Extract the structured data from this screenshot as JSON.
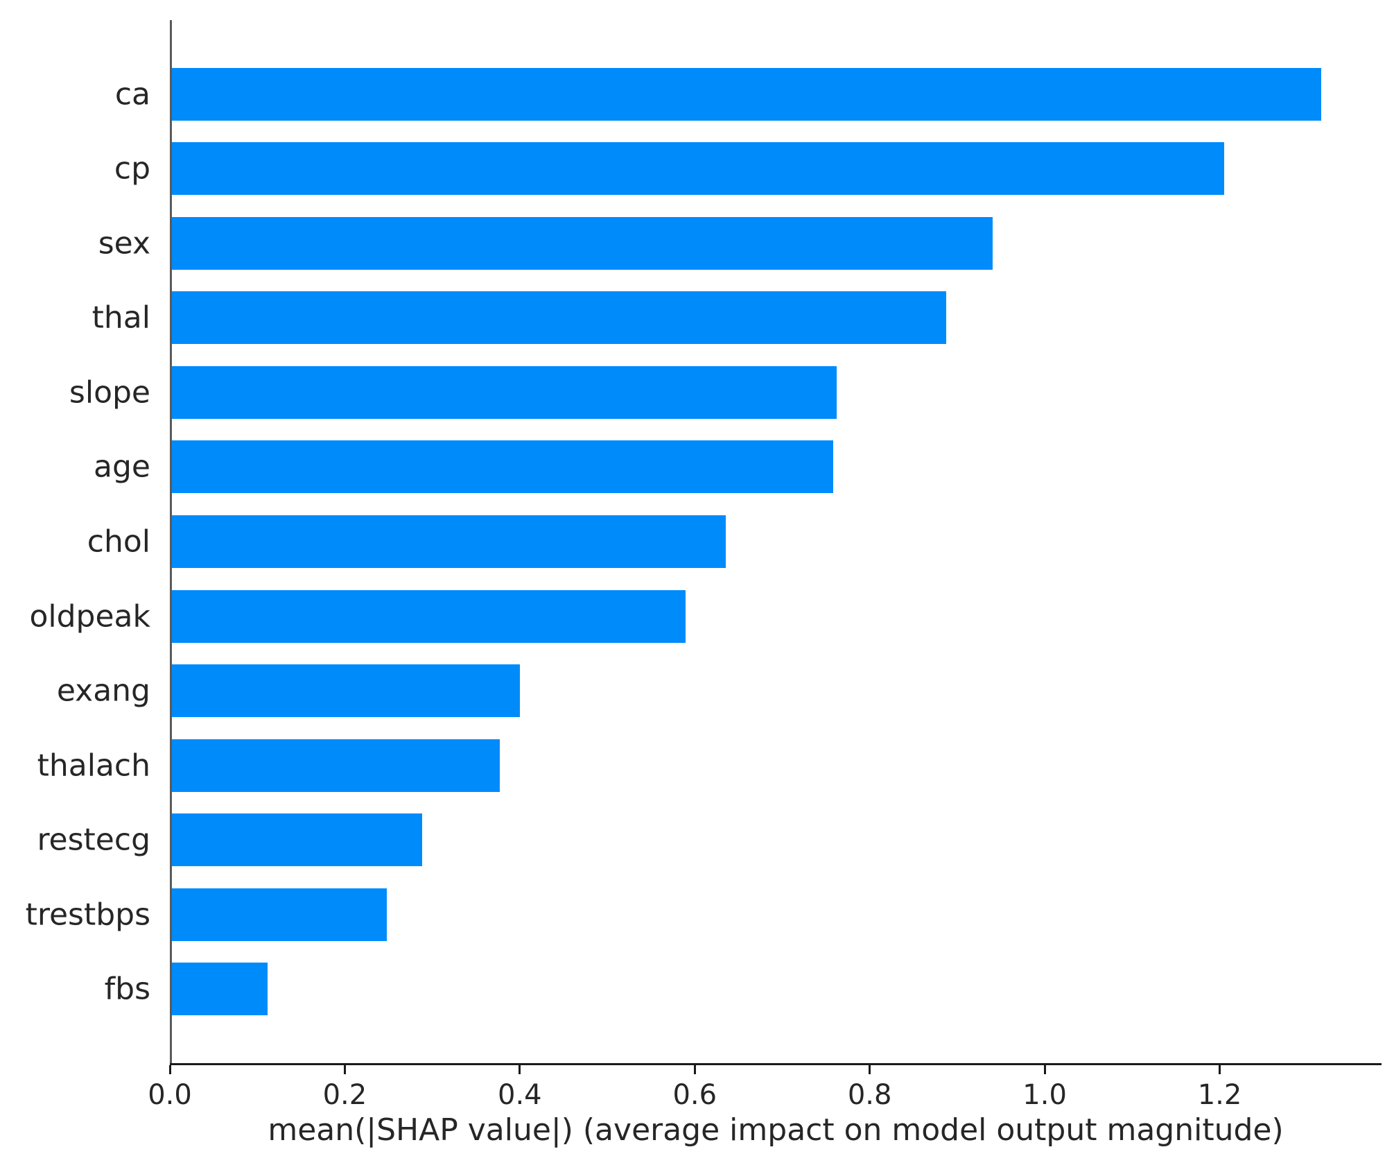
{
  "chart_data": {
    "type": "bar",
    "orientation": "horizontal",
    "title": "",
    "xlabel": "mean(|SHAP value|) (average impact on model output magnitude)",
    "ylabel": "",
    "categories": [
      "ca",
      "cp",
      "sex",
      "thal",
      "slope",
      "age",
      "chol",
      "oldpeak",
      "exang",
      "thalach",
      "restecg",
      "trestbps",
      "fbs"
    ],
    "values": [
      1.314,
      1.203,
      0.938,
      0.885,
      0.76,
      0.756,
      0.633,
      0.587,
      0.398,
      0.375,
      0.286,
      0.246,
      0.109
    ],
    "xlim": [
      0,
      1.385
    ],
    "x_ticks": [
      0.0,
      0.2,
      0.4,
      0.6,
      0.8,
      1.0,
      1.2
    ],
    "x_tick_labels": [
      "0.0",
      "0.2",
      "0.4",
      "0.6",
      "0.8",
      "1.0",
      "1.2"
    ],
    "bar_color": "#008bfb",
    "grid": false,
    "legend": "none"
  }
}
